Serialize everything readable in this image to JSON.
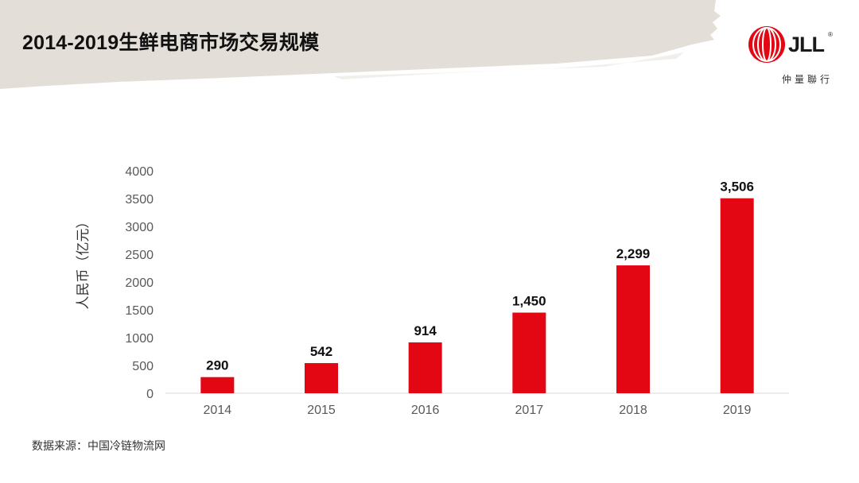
{
  "slide": {
    "title": "2014-2019生鲜电商市场交易规模",
    "source": "数据来源：中国冷链物流网"
  },
  "logo": {
    "text": "JLL",
    "registered": "®",
    "subtitle": "仲量聯行",
    "icon": "jll-globe-icon"
  },
  "colors": {
    "bar": "#E30613",
    "brush": "#E3DFD8",
    "axis": "#D9D9D9"
  },
  "chart_data": {
    "type": "bar",
    "title": "",
    "xlabel": "",
    "ylabel": "人民币（亿元）",
    "categories": [
      "2014",
      "2015",
      "2016",
      "2017",
      "2018",
      "2019"
    ],
    "values": [
      290,
      542,
      914,
      1450,
      2299,
      3506
    ],
    "value_labels": [
      "290",
      "542",
      "914",
      "1,450",
      "2,299",
      "3,506"
    ],
    "ylim": [
      0,
      4000
    ],
    "yticks": [
      "0",
      "500",
      "1000",
      "1500",
      "2000",
      "2500",
      "3000",
      "3500",
      "4000"
    ],
    "grid": false,
    "legend": "none"
  }
}
